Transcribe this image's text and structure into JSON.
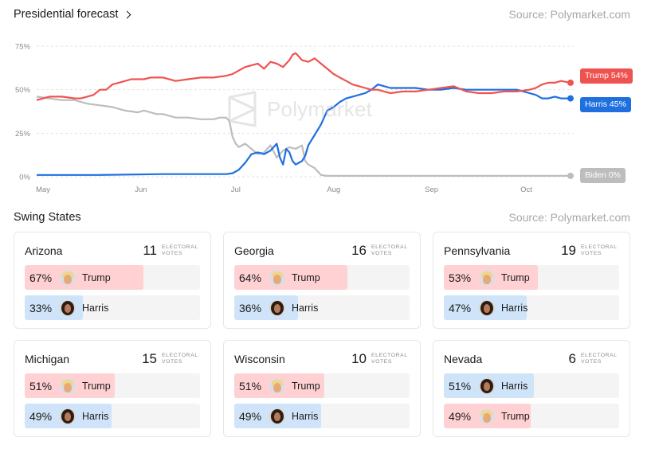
{
  "header": {
    "title": "Presidential forecast",
    "source": "Source: Polymarket.com"
  },
  "watermark": {
    "text": "Polymarket",
    "icon": "polymarket-logo-icon"
  },
  "chart_data": {
    "type": "line",
    "title": "Presidential forecast",
    "x_ticks": [
      "May",
      "Jun",
      "Jul",
      "Aug",
      "Sep",
      "Oct"
    ],
    "x_tick_positions": [
      0,
      31,
      61,
      92,
      123,
      153
    ],
    "x_range": [
      0,
      169
    ],
    "y_ticks": [
      "75%",
      "50%",
      "25%",
      "0%"
    ],
    "y_tick_values": [
      75,
      50,
      25,
      0
    ],
    "ylim": [
      0,
      75
    ],
    "grid": true,
    "legend": "end-labels-right",
    "series": [
      {
        "name": "Trump",
        "color": "#ef5350",
        "end_label": "Trump 54%",
        "points": [
          [
            0,
            44
          ],
          [
            4,
            46
          ],
          [
            8,
            46
          ],
          [
            12,
            45
          ],
          [
            14,
            45
          ],
          [
            16,
            46
          ],
          [
            18,
            47
          ],
          [
            20,
            50
          ],
          [
            22,
            50
          ],
          [
            24,
            53
          ],
          [
            26,
            54
          ],
          [
            30,
            56
          ],
          [
            34,
            56
          ],
          [
            36,
            57
          ],
          [
            40,
            57
          ],
          [
            44,
            55
          ],
          [
            48,
            56
          ],
          [
            52,
            57
          ],
          [
            56,
            57
          ],
          [
            60,
            58
          ],
          [
            62,
            59
          ],
          [
            64,
            61
          ],
          [
            66,
            63
          ],
          [
            68,
            64
          ],
          [
            70,
            65
          ],
          [
            72,
            62
          ],
          [
            74,
            66
          ],
          [
            76,
            65
          ],
          [
            78,
            63
          ],
          [
            80,
            67
          ],
          [
            81,
            70
          ],
          [
            82,
            71
          ],
          [
            83,
            69
          ],
          [
            84,
            67
          ],
          [
            86,
            66
          ],
          [
            88,
            68
          ],
          [
            90,
            65
          ],
          [
            92,
            62
          ],
          [
            94,
            59
          ],
          [
            96,
            57
          ],
          [
            98,
            55
          ],
          [
            100,
            53
          ],
          [
            102,
            52
          ],
          [
            104,
            51
          ],
          [
            106,
            50
          ],
          [
            108,
            50
          ],
          [
            110,
            49
          ],
          [
            112,
            48
          ],
          [
            116,
            49
          ],
          [
            120,
            49
          ],
          [
            124,
            50
          ],
          [
            128,
            51
          ],
          [
            132,
            52
          ],
          [
            136,
            49
          ],
          [
            140,
            48
          ],
          [
            144,
            48
          ],
          [
            148,
            49
          ],
          [
            152,
            49
          ],
          [
            156,
            50
          ],
          [
            158,
            51
          ],
          [
            160,
            53
          ],
          [
            162,
            54
          ],
          [
            164,
            54
          ],
          [
            166,
            55
          ],
          [
            169,
            54
          ]
        ]
      },
      {
        "name": "Harris",
        "color": "#1f6fe0",
        "end_label": "Harris 45%",
        "points": [
          [
            0,
            1
          ],
          [
            20,
            1
          ],
          [
            40,
            1.5
          ],
          [
            60,
            1.5
          ],
          [
            62,
            2
          ],
          [
            64,
            4
          ],
          [
            66,
            8
          ],
          [
            68,
            13
          ],
          [
            70,
            14
          ],
          [
            72,
            13
          ],
          [
            74,
            15
          ],
          [
            76,
            19
          ],
          [
            77,
            11
          ],
          [
            78,
            7
          ],
          [
            79,
            16
          ],
          [
            80,
            14
          ],
          [
            81,
            9
          ],
          [
            82,
            7
          ],
          [
            83,
            8
          ],
          [
            84,
            9
          ],
          [
            85,
            12
          ],
          [
            86,
            18
          ],
          [
            88,
            24
          ],
          [
            90,
            30
          ],
          [
            92,
            38
          ],
          [
            94,
            40
          ],
          [
            96,
            43
          ],
          [
            98,
            45
          ],
          [
            100,
            46
          ],
          [
            102,
            47
          ],
          [
            104,
            48
          ],
          [
            106,
            50
          ],
          [
            108,
            53
          ],
          [
            110,
            52
          ],
          [
            112,
            51
          ],
          [
            116,
            51
          ],
          [
            120,
            51
          ],
          [
            124,
            50
          ],
          [
            128,
            50
          ],
          [
            132,
            51
          ],
          [
            136,
            50
          ],
          [
            140,
            50
          ],
          [
            144,
            50
          ],
          [
            148,
            50
          ],
          [
            152,
            50
          ],
          [
            156,
            48
          ],
          [
            158,
            47
          ],
          [
            160,
            45
          ],
          [
            162,
            45
          ],
          [
            164,
            46
          ],
          [
            166,
            45
          ],
          [
            169,
            45
          ]
        ]
      },
      {
        "name": "Biden",
        "color": "#bdbdbd",
        "end_label": "Biden 0%",
        "points": [
          [
            0,
            46
          ],
          [
            4,
            45
          ],
          [
            8,
            44
          ],
          [
            12,
            44
          ],
          [
            16,
            42
          ],
          [
            20,
            41
          ],
          [
            24,
            40
          ],
          [
            28,
            38
          ],
          [
            32,
            37
          ],
          [
            34,
            38
          ],
          [
            36,
            37
          ],
          [
            38,
            36
          ],
          [
            40,
            36
          ],
          [
            44,
            34
          ],
          [
            48,
            34
          ],
          [
            52,
            33
          ],
          [
            56,
            33
          ],
          [
            58,
            34
          ],
          [
            60,
            34
          ],
          [
            61,
            32
          ],
          [
            62,
            23
          ],
          [
            63,
            19
          ],
          [
            64,
            17
          ],
          [
            66,
            19
          ],
          [
            68,
            16
          ],
          [
            70,
            13
          ],
          [
            72,
            14
          ],
          [
            74,
            18
          ],
          [
            76,
            11
          ],
          [
            78,
            15
          ],
          [
            80,
            17
          ],
          [
            82,
            16
          ],
          [
            84,
            18
          ],
          [
            85,
            9
          ],
          [
            86,
            7
          ],
          [
            88,
            5
          ],
          [
            90,
            1
          ],
          [
            92,
            0.5
          ],
          [
            100,
            0.5
          ],
          [
            120,
            0.5
          ],
          [
            140,
            0.5
          ],
          [
            160,
            0.5
          ],
          [
            169,
            0.5
          ]
        ]
      }
    ]
  },
  "swing": {
    "title": "Swing States",
    "source": "Source: Polymarket.com",
    "ev_label": "ELECTORAL VOTES",
    "states": [
      {
        "name": "Arizona",
        "ev": "11",
        "rows": [
          {
            "pct": "67%",
            "value": 67,
            "candidate": "Trump",
            "party": "rep"
          },
          {
            "pct": "33%",
            "value": 33,
            "candidate": "Harris",
            "party": "dem"
          }
        ]
      },
      {
        "name": "Georgia",
        "ev": "16",
        "rows": [
          {
            "pct": "64%",
            "value": 64,
            "candidate": "Trump",
            "party": "rep"
          },
          {
            "pct": "36%",
            "value": 36,
            "candidate": "Harris",
            "party": "dem"
          }
        ]
      },
      {
        "name": "Pennsylvania",
        "ev": "19",
        "rows": [
          {
            "pct": "53%",
            "value": 53,
            "candidate": "Trump",
            "party": "rep"
          },
          {
            "pct": "47%",
            "value": 47,
            "candidate": "Harris",
            "party": "dem"
          }
        ]
      },
      {
        "name": "Michigan",
        "ev": "15",
        "rows": [
          {
            "pct": "51%",
            "value": 51,
            "candidate": "Trump",
            "party": "rep"
          },
          {
            "pct": "49%",
            "value": 49,
            "candidate": "Harris",
            "party": "dem"
          }
        ]
      },
      {
        "name": "Wisconsin",
        "ev": "10",
        "rows": [
          {
            "pct": "51%",
            "value": 51,
            "candidate": "Trump",
            "party": "rep"
          },
          {
            "pct": "49%",
            "value": 49,
            "candidate": "Harris",
            "party": "dem"
          }
        ]
      },
      {
        "name": "Nevada",
        "ev": "6",
        "rows": [
          {
            "pct": "51%",
            "value": 51,
            "candidate": "Harris",
            "party": "dem"
          },
          {
            "pct": "49%",
            "value": 49,
            "candidate": "Trump",
            "party": "rep"
          }
        ]
      }
    ]
  },
  "colors": {
    "rep_fill": "#ffd1d3",
    "dem_fill": "#cfe4f8",
    "row_bg": "#f4f4f4"
  }
}
